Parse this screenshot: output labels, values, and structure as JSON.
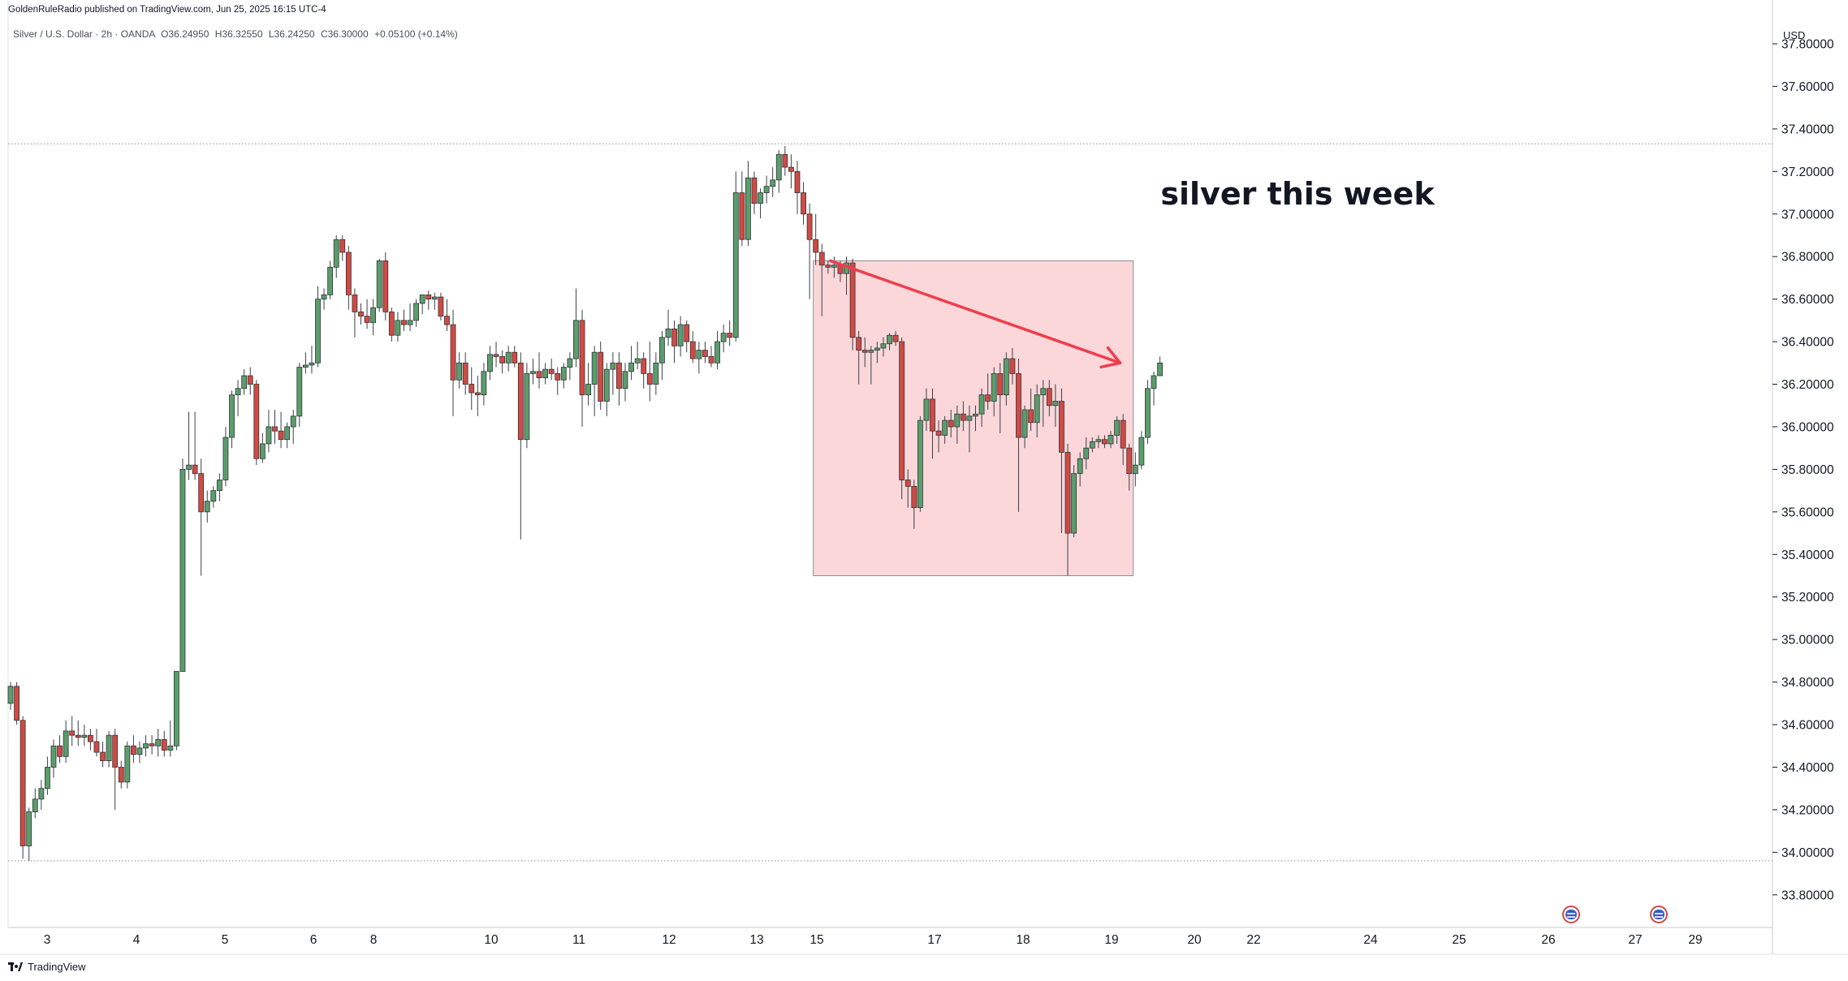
{
  "header": {
    "published": "GoldenRuleRadio published on TradingView.com, Jun 25, 2025 16:15 UTC-4",
    "symbol": "Silver / U.S. Dollar · 2h · OANDA",
    "open": "O36.24950",
    "high": "H36.32550",
    "low": "L36.24250",
    "close": "C36.30000",
    "change": "+0.05100 (+0.14%)"
  },
  "footer": {
    "brand": "TradingView"
  },
  "colors": {
    "up": "#5b9e6b",
    "down": "#d24a43",
    "box": "#f9c9ce",
    "arrow": "#ee3e4d"
  },
  "chart_data": {
    "type": "candlestick",
    "currency": "USD",
    "annotation": "silver this week",
    "y_ticks": [
      "37.80000",
      "37.60000",
      "37.40000",
      "37.20000",
      "37.00000",
      "36.80000",
      "36.60000",
      "36.40000",
      "36.20000",
      "36.00000",
      "35.80000",
      "35.60000",
      "35.40000",
      "35.20000",
      "35.00000",
      "34.80000",
      "34.60000",
      "34.40000",
      "34.20000",
      "34.00000",
      "33.80000"
    ],
    "ylim": [
      33.62,
      37.8
    ],
    "x_ticks": [
      "3",
      "4",
      "5",
      "6",
      "8",
      "10",
      "11",
      "12",
      "13",
      "15",
      "17",
      "18",
      "19",
      "20",
      "22",
      "24",
      "25",
      "26",
      "27",
      "29"
    ],
    "reference_lines": [
      37.33,
      33.96
    ],
    "highlight_box": {
      "y_top": 36.78,
      "y_bottom": 35.3,
      "from_bar": 131,
      "to_bar": 182
    },
    "trend_arrow": {
      "from_price": 36.78,
      "to_price": 36.3,
      "from_bar": 133,
      "to_bar": 180
    },
    "candles": [
      [
        34.7,
        34.8,
        34.67,
        34.78
      ],
      [
        34.78,
        34.8,
        34.6,
        34.62
      ],
      [
        34.62,
        34.64,
        33.97,
        34.03
      ],
      [
        34.03,
        34.21,
        33.96,
        34.19
      ],
      [
        34.19,
        34.3,
        34.16,
        34.25
      ],
      [
        34.25,
        34.34,
        34.2,
        34.3
      ],
      [
        34.3,
        34.45,
        34.27,
        34.4
      ],
      [
        34.4,
        34.53,
        34.35,
        34.5
      ],
      [
        34.5,
        34.55,
        34.42,
        34.45
      ],
      [
        34.45,
        34.62,
        34.42,
        34.57
      ],
      [
        34.57,
        34.64,
        34.5,
        34.55
      ],
      [
        34.55,
        34.62,
        34.5,
        34.54
      ],
      [
        34.54,
        34.6,
        34.5,
        34.55
      ],
      [
        34.55,
        34.58,
        34.48,
        34.52
      ],
      [
        34.52,
        34.58,
        34.45,
        34.47
      ],
      [
        34.47,
        34.52,
        34.4,
        34.43
      ],
      [
        34.43,
        34.57,
        34.4,
        34.55
      ],
      [
        34.55,
        34.58,
        34.2,
        34.4
      ],
      [
        34.4,
        34.43,
        34.3,
        34.33
      ],
      [
        34.33,
        34.52,
        34.3,
        34.5
      ],
      [
        34.5,
        34.55,
        34.42,
        34.46
      ],
      [
        34.46,
        34.52,
        34.42,
        34.49
      ],
      [
        34.49,
        34.55,
        34.45,
        34.51
      ],
      [
        34.51,
        34.55,
        34.46,
        34.5
      ],
      [
        34.5,
        34.58,
        34.45,
        34.53
      ],
      [
        34.53,
        34.57,
        34.45,
        34.48
      ],
      [
        34.48,
        34.62,
        34.45,
        34.5
      ],
      [
        34.5,
        34.85,
        34.48,
        34.85
      ],
      [
        34.85,
        35.85,
        34.85,
        35.8
      ],
      [
        35.8,
        36.07,
        35.75,
        35.82
      ],
      [
        35.82,
        36.07,
        35.75,
        35.78
      ],
      [
        35.78,
        35.85,
        35.3,
        35.6
      ],
      [
        35.6,
        35.7,
        35.55,
        35.65
      ],
      [
        35.65,
        35.72,
        35.62,
        35.7
      ],
      [
        35.7,
        35.78,
        35.65,
        35.75
      ],
      [
        35.75,
        36.0,
        35.72,
        35.95
      ],
      [
        35.95,
        36.17,
        35.9,
        36.15
      ],
      [
        36.15,
        36.22,
        36.05,
        36.18
      ],
      [
        36.18,
        36.27,
        36.15,
        36.24
      ],
      [
        36.24,
        36.28,
        36.15,
        36.2
      ],
      [
        36.2,
        36.22,
        35.82,
        35.85
      ],
      [
        35.85,
        35.97,
        35.83,
        35.92
      ],
      [
        35.92,
        36.08,
        35.88,
        36.0
      ],
      [
        36.0,
        36.08,
        35.92,
        35.98
      ],
      [
        35.98,
        36.07,
        35.9,
        35.94
      ],
      [
        35.94,
        36.02,
        35.9,
        36.0
      ],
      [
        36.0,
        36.08,
        35.92,
        36.05
      ],
      [
        36.05,
        36.3,
        36.0,
        36.28
      ],
      [
        36.28,
        36.35,
        36.25,
        36.29
      ],
      [
        36.29,
        36.38,
        36.25,
        36.3
      ],
      [
        36.3,
        36.66,
        36.28,
        36.6
      ],
      [
        36.6,
        36.65,
        36.55,
        36.62
      ],
      [
        36.62,
        36.78,
        36.6,
        36.75
      ],
      [
        36.75,
        36.9,
        36.7,
        36.88
      ],
      [
        36.88,
        36.9,
        36.78,
        36.82
      ],
      [
        36.82,
        36.85,
        36.55,
        36.62
      ],
      [
        36.62,
        36.65,
        36.42,
        36.54
      ],
      [
        36.54,
        36.58,
        36.48,
        36.52
      ],
      [
        36.52,
        36.6,
        36.46,
        36.49
      ],
      [
        36.49,
        36.6,
        36.43,
        36.56
      ],
      [
        36.56,
        36.79,
        36.54,
        36.78
      ],
      [
        36.78,
        36.82,
        36.5,
        36.54
      ],
      [
        36.54,
        36.56,
        36.4,
        36.43
      ],
      [
        36.43,
        36.54,
        36.4,
        36.5
      ],
      [
        36.5,
        36.55,
        36.45,
        36.48
      ],
      [
        36.48,
        36.58,
        36.45,
        36.5
      ],
      [
        36.5,
        36.6,
        36.47,
        36.58
      ],
      [
        36.58,
        36.62,
        36.53,
        36.62
      ],
      [
        36.62,
        36.64,
        36.55,
        36.6
      ],
      [
        36.6,
        36.63,
        36.55,
        36.61
      ],
      [
        36.61,
        36.63,
        36.5,
        36.52
      ],
      [
        36.52,
        36.6,
        36.45,
        36.48
      ],
      [
        36.48,
        36.55,
        36.05,
        36.22
      ],
      [
        36.22,
        36.35,
        36.18,
        36.3
      ],
      [
        36.3,
        36.35,
        36.15,
        36.2
      ],
      [
        36.2,
        36.28,
        36.08,
        36.16
      ],
      [
        36.16,
        36.24,
        36.05,
        36.15
      ],
      [
        36.15,
        36.3,
        36.1,
        36.26
      ],
      [
        36.26,
        36.38,
        36.22,
        36.34
      ],
      [
        36.34,
        36.4,
        36.28,
        36.33
      ],
      [
        36.33,
        36.36,
        36.25,
        36.3
      ],
      [
        36.3,
        36.38,
        36.26,
        36.35
      ],
      [
        36.35,
        36.38,
        36.28,
        36.3
      ],
      [
        36.3,
        36.35,
        35.47,
        35.94
      ],
      [
        35.94,
        36.3,
        35.9,
        36.25
      ],
      [
        36.25,
        36.32,
        36.2,
        36.26
      ],
      [
        36.26,
        36.35,
        36.18,
        36.23
      ],
      [
        36.23,
        36.3,
        36.2,
        36.27
      ],
      [
        36.27,
        36.32,
        36.22,
        36.25
      ],
      [
        36.25,
        36.28,
        36.15,
        36.22
      ],
      [
        36.22,
        36.3,
        36.18,
        36.28
      ],
      [
        36.28,
        36.35,
        36.22,
        36.32
      ],
      [
        36.32,
        36.65,
        36.28,
        36.5
      ],
      [
        36.5,
        36.55,
        36.0,
        36.15
      ],
      [
        36.15,
        36.3,
        36.1,
        36.2
      ],
      [
        36.2,
        36.38,
        36.05,
        36.35
      ],
      [
        36.35,
        36.4,
        36.08,
        36.12
      ],
      [
        36.12,
        36.3,
        36.05,
        36.27
      ],
      [
        36.27,
        36.35,
        36.15,
        36.3
      ],
      [
        36.3,
        36.35,
        36.1,
        36.18
      ],
      [
        36.18,
        36.3,
        36.12,
        36.26
      ],
      [
        36.26,
        36.38,
        36.22,
        36.3
      ],
      [
        36.3,
        36.4,
        36.27,
        36.32
      ],
      [
        36.32,
        36.35,
        36.18,
        36.25
      ],
      [
        36.25,
        36.4,
        36.12,
        36.2
      ],
      [
        36.2,
        36.35,
        36.15,
        36.3
      ],
      [
        36.3,
        36.45,
        36.22,
        36.42
      ],
      [
        36.42,
        36.55,
        36.38,
        36.46
      ],
      [
        36.46,
        36.5,
        36.3,
        36.38
      ],
      [
        36.38,
        36.52,
        36.33,
        36.48
      ],
      [
        36.48,
        36.5,
        36.35,
        36.4
      ],
      [
        36.4,
        36.45,
        36.3,
        36.32
      ],
      [
        36.32,
        36.4,
        36.25,
        36.36
      ],
      [
        36.36,
        36.4,
        36.3,
        36.33
      ],
      [
        36.33,
        36.38,
        36.28,
        36.3
      ],
      [
        36.3,
        36.45,
        36.27,
        36.4
      ],
      [
        36.4,
        36.48,
        36.35,
        36.44
      ],
      [
        36.44,
        36.5,
        36.38,
        36.42
      ],
      [
        36.42,
        37.2,
        36.4,
        37.1
      ],
      [
        37.1,
        37.2,
        36.85,
        36.88
      ],
      [
        36.88,
        37.25,
        36.85,
        37.17
      ],
      [
        37.17,
        37.2,
        37.0,
        37.05
      ],
      [
        37.05,
        37.12,
        36.98,
        37.1
      ],
      [
        37.1,
        37.18,
        37.05,
        37.13
      ],
      [
        37.13,
        37.22,
        37.08,
        37.16
      ],
      [
        37.16,
        37.3,
        37.1,
        37.28
      ],
      [
        37.28,
        37.32,
        37.18,
        37.22
      ],
      [
        37.22,
        37.28,
        37.12,
        37.2
      ],
      [
        37.2,
        37.25,
        37.0,
        37.1
      ],
      [
        37.1,
        37.15,
        36.95,
        37.0
      ],
      [
        37.0,
        37.05,
        36.6,
        36.88
      ],
      [
        36.88,
        37.0,
        36.76,
        36.82
      ],
      [
        36.82,
        36.86,
        36.52,
        36.76
      ],
      [
        36.76,
        36.78,
        36.72,
        36.75
      ],
      [
        36.75,
        36.8,
        36.7,
        36.76
      ],
      [
        36.76,
        36.78,
        36.68,
        36.72
      ],
      [
        36.72,
        36.8,
        36.62,
        36.77
      ],
      [
        36.77,
        36.79,
        36.36,
        36.42
      ],
      [
        36.42,
        36.45,
        36.2,
        36.36
      ],
      [
        36.36,
        36.42,
        36.28,
        36.35
      ],
      [
        36.35,
        36.38,
        36.2,
        36.36
      ],
      [
        36.36,
        36.4,
        36.3,
        36.37
      ],
      [
        36.37,
        36.42,
        36.33,
        36.39
      ],
      [
        36.39,
        36.44,
        36.36,
        36.43
      ],
      [
        36.43,
        36.45,
        36.38,
        36.4
      ],
      [
        36.4,
        36.42,
        35.66,
        35.75
      ],
      [
        35.75,
        35.8,
        35.62,
        35.72
      ],
      [
        35.72,
        35.75,
        35.52,
        35.62
      ],
      [
        35.62,
        36.05,
        35.6,
        36.03
      ],
      [
        36.03,
        36.18,
        35.98,
        36.13
      ],
      [
        36.13,
        36.18,
        35.85,
        35.98
      ],
      [
        35.98,
        36.03,
        35.88,
        35.96
      ],
      [
        35.96,
        36.05,
        35.92,
        36.03
      ],
      [
        36.03,
        36.08,
        35.95,
        36.0
      ],
      [
        36.0,
        36.1,
        35.92,
        36.06
      ],
      [
        36.06,
        36.12,
        35.98,
        36.03
      ],
      [
        36.03,
        36.1,
        35.88,
        36.05
      ],
      [
        36.05,
        36.1,
        35.98,
        36.06
      ],
      [
        36.06,
        36.18,
        36.0,
        36.15
      ],
      [
        36.15,
        36.25,
        36.08,
        36.12
      ],
      [
        36.12,
        36.28,
        36.05,
        36.25
      ],
      [
        36.25,
        36.3,
        35.97,
        36.15
      ],
      [
        36.15,
        36.35,
        36.1,
        36.32
      ],
      [
        36.32,
        36.37,
        36.2,
        36.25
      ],
      [
        36.25,
        36.32,
        35.6,
        35.95
      ],
      [
        35.95,
        36.1,
        35.9,
        36.08
      ],
      [
        36.08,
        36.18,
        35.98,
        36.02
      ],
      [
        36.02,
        36.2,
        35.95,
        36.15
      ],
      [
        36.15,
        36.22,
        36.0,
        36.18
      ],
      [
        36.18,
        36.22,
        36.05,
        36.1
      ],
      [
        36.1,
        36.2,
        36.0,
        36.12
      ],
      [
        36.12,
        36.18,
        35.5,
        35.88
      ],
      [
        35.88,
        35.92,
        35.3,
        35.5
      ],
      [
        35.5,
        35.82,
        35.48,
        35.78
      ],
      [
        35.78,
        35.88,
        35.72,
        35.85
      ],
      [
        35.85,
        35.95,
        35.8,
        35.9
      ],
      [
        35.9,
        35.95,
        35.88,
        35.93
      ],
      [
        35.93,
        35.96,
        35.9,
        35.94
      ],
      [
        35.94,
        35.96,
        35.9,
        35.92
      ],
      [
        35.92,
        35.98,
        35.9,
        35.96
      ],
      [
        35.96,
        36.05,
        35.92,
        36.03
      ],
      [
        36.03,
        36.06,
        35.82,
        35.9
      ],
      [
        35.9,
        35.92,
        35.7,
        35.78
      ],
      [
        35.78,
        35.88,
        35.72,
        35.82
      ],
      [
        35.82,
        35.98,
        35.8,
        35.95
      ],
      [
        35.95,
        36.22,
        35.92,
        36.18
      ],
      [
        36.18,
        36.26,
        36.1,
        36.24
      ],
      [
        36.24,
        36.33,
        36.24,
        36.3
      ]
    ]
  }
}
